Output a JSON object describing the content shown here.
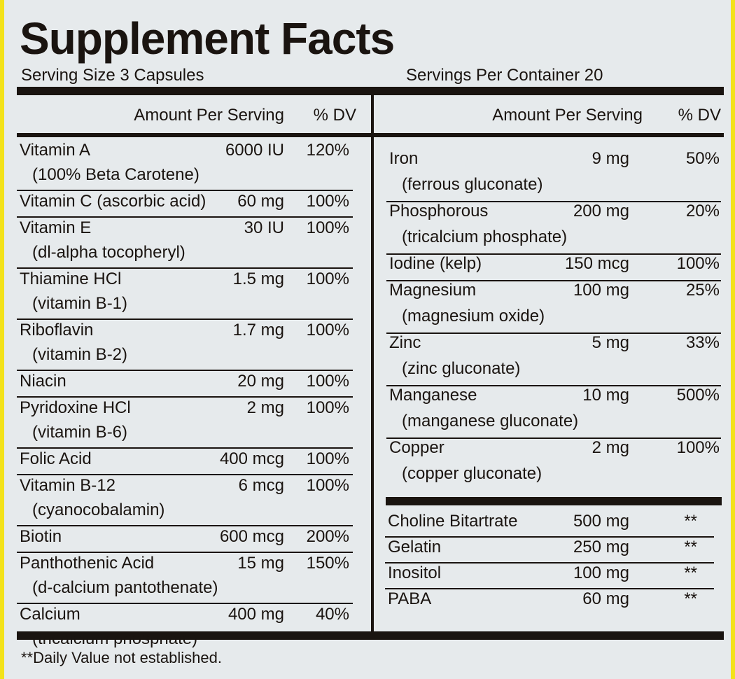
{
  "header": {
    "title": "Supplement Facts",
    "serving_size": "Serving Size 3 Capsules",
    "servings_per_container": "Servings Per Container 20"
  },
  "left": {
    "header": {
      "amount": "Amount Per Serving",
      "dv": "% DV"
    },
    "rows": [
      {
        "name": "Vitamin A",
        "amount": "6000 IU",
        "dv": "120%",
        "note": "(100% Beta Carotene)"
      },
      {
        "name": "Vitamin C (ascorbic acid)",
        "amount": "60 mg",
        "dv": "100%"
      },
      {
        "name": "Vitamin E",
        "amount": "30 IU",
        "dv": "100%",
        "note": "(dl-alpha tocopheryl)"
      },
      {
        "name": "Thiamine HCl",
        "amount": "1.5 mg",
        "dv": "100%",
        "note": "(vitamin B-1)"
      },
      {
        "name": "Riboflavin",
        "amount": "1.7 mg",
        "dv": "100%",
        "note": "(vitamin B-2)"
      },
      {
        "name": "Niacin",
        "amount": "20 mg",
        "dv": "100%"
      },
      {
        "name": "Pyridoxine HCl",
        "amount": "2 mg",
        "dv": "100%",
        "note": "(vitamin B-6)"
      },
      {
        "name": "Folic Acid",
        "amount": "400 mcg",
        "dv": "100%"
      },
      {
        "name": "Vitamin B-12",
        "amount": "6 mcg",
        "dv": "100%",
        "note": "(cyanocobalamin)"
      },
      {
        "name": "Biotin",
        "amount": "600 mcg",
        "dv": "200%"
      },
      {
        "name": "Panthothenic Acid",
        "amount": "15 mg",
        "dv": "150%",
        "note": "(d-calcium pantothenate)"
      },
      {
        "name": "Calcium",
        "amount": "400 mg",
        "dv": "40%",
        "note": "(tricalcium phosphate)"
      }
    ]
  },
  "right": {
    "header": {
      "amount": "Amount Per Serving",
      "dv": "% DV"
    },
    "rows": [
      {
        "name": "Iron",
        "amount": "9 mg",
        "dv": "50%",
        "note": "(ferrous gluconate)"
      },
      {
        "name": "Phosphorous",
        "amount": "200 mg",
        "dv": "20%",
        "note": "(tricalcium phosphate)"
      },
      {
        "name": "Iodine (kelp)",
        "amount": "150 mcg",
        "dv": "100%"
      },
      {
        "name": "Magnesium",
        "amount": "100 mg",
        "dv": "25%",
        "note": "(magnesium oxide)"
      },
      {
        "name": "Zinc",
        "amount": "5 mg",
        "dv": "33%",
        "note": "(zinc gluconate)"
      },
      {
        "name": "Manganese",
        "amount": "10 mg",
        "dv": "500%",
        "note": "(manganese gluconate)"
      },
      {
        "name": "Copper",
        "amount": "2 mg",
        "dv": "100%",
        "note": "(copper gluconate)"
      }
    ],
    "other": [
      {
        "name": "Choline Bitartrate",
        "amount": "500 mg",
        "dv": "**"
      },
      {
        "name": "Gelatin",
        "amount": "250 mg",
        "dv": "**"
      },
      {
        "name": "Inositol",
        "amount": "100 mg",
        "dv": "**"
      },
      {
        "name": "PABA",
        "amount": "60 mg",
        "dv": "**"
      }
    ]
  },
  "footnote": "**Daily Value not established."
}
